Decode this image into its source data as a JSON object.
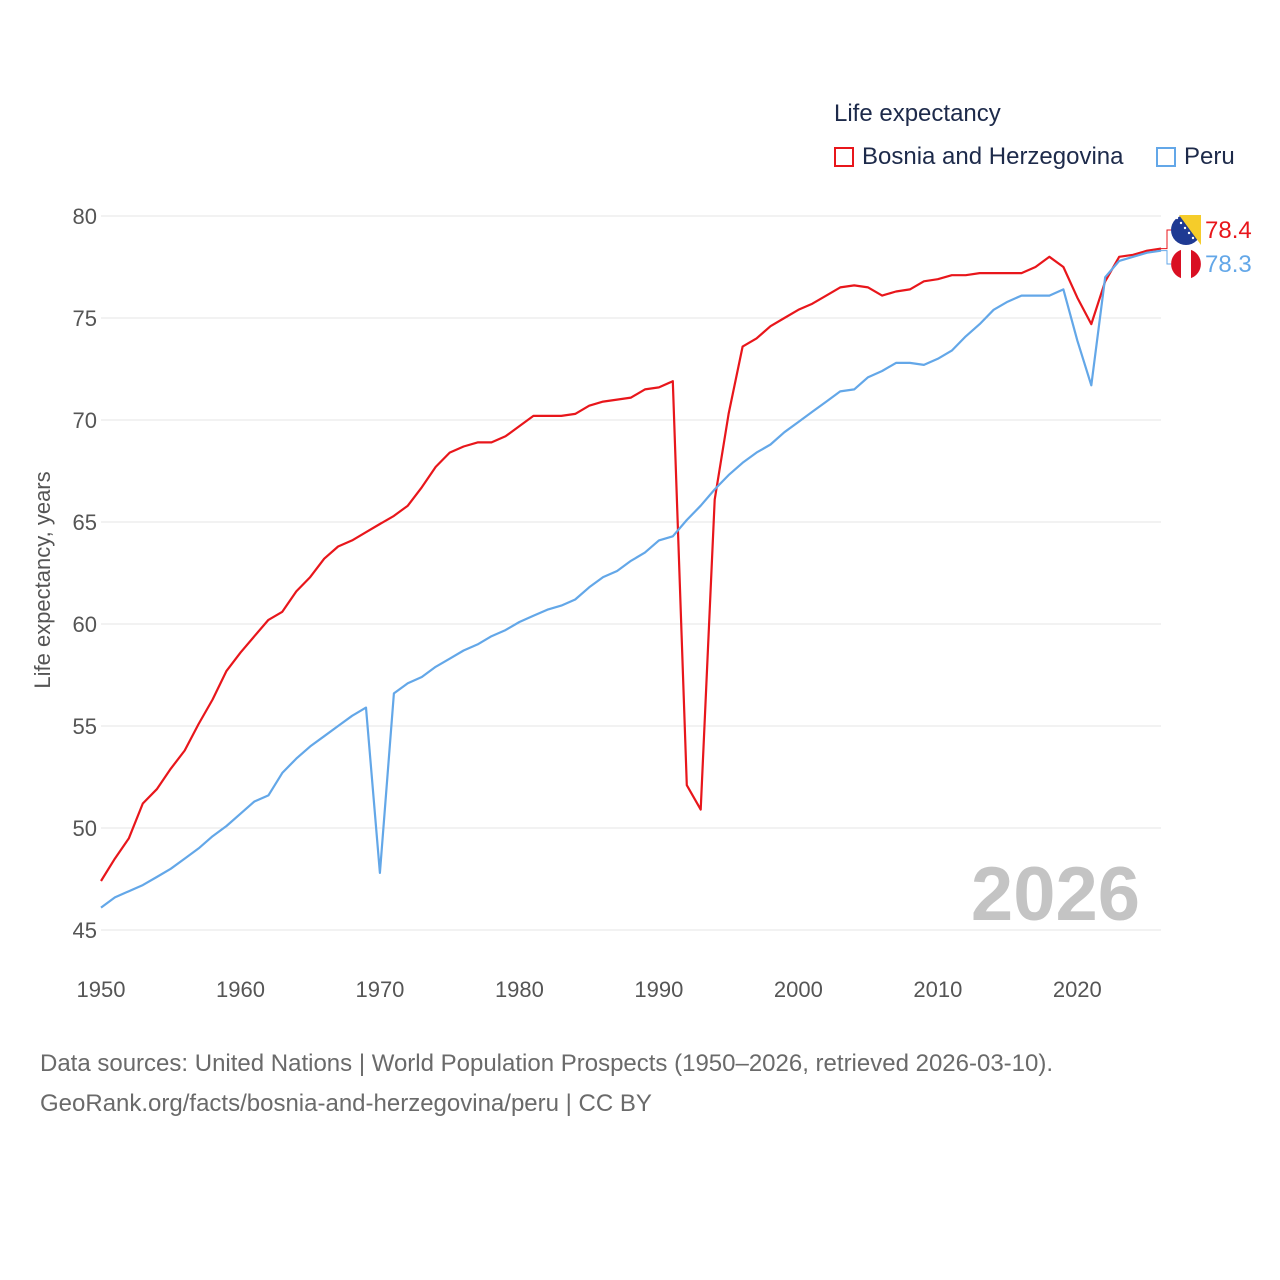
{
  "chart_data": {
    "type": "line",
    "legend_title": "Life expectancy",
    "ylabel": "Life expectancy, years",
    "xlabel": "",
    "xlim": [
      1950,
      2026
    ],
    "ylim": [
      45,
      80
    ],
    "x_ticks": [
      1950,
      1960,
      1970,
      1980,
      1990,
      2000,
      2010,
      2020
    ],
    "y_ticks": [
      45,
      50,
      55,
      60,
      65,
      70,
      75,
      80
    ],
    "year_label": "2026",
    "legend_position": "top-right",
    "series": [
      {
        "name": "Bosnia and Herzegovina",
        "color": "#e8161b",
        "end_label": "78.4",
        "flag_icon": "bosnia-flag-icon",
        "x": [
          1950,
          1951,
          1952,
          1953,
          1954,
          1955,
          1956,
          1957,
          1958,
          1959,
          1960,
          1961,
          1962,
          1963,
          1964,
          1965,
          1966,
          1967,
          1968,
          1969,
          1970,
          1971,
          1972,
          1973,
          1974,
          1975,
          1976,
          1977,
          1978,
          1979,
          1980,
          1981,
          1982,
          1983,
          1984,
          1985,
          1986,
          1987,
          1988,
          1989,
          1990,
          1991,
          1992,
          1993,
          1994,
          1995,
          1996,
          1997,
          1998,
          1999,
          2000,
          2001,
          2002,
          2003,
          2004,
          2005,
          2006,
          2007,
          2008,
          2009,
          2010,
          2011,
          2012,
          2013,
          2014,
          2015,
          2016,
          2017,
          2018,
          2019,
          2020,
          2021,
          2022,
          2023,
          2024,
          2025,
          2026
        ],
        "values": [
          47.4,
          48.5,
          49.5,
          51.2,
          51.9,
          52.9,
          53.8,
          55.1,
          56.3,
          57.7,
          58.6,
          59.4,
          60.2,
          60.6,
          61.6,
          62.3,
          63.2,
          63.8,
          64.1,
          64.5,
          64.9,
          65.3,
          65.8,
          66.7,
          67.7,
          68.4,
          68.7,
          68.9,
          68.9,
          69.2,
          69.7,
          70.2,
          70.2,
          70.2,
          70.3,
          70.7,
          70.9,
          71.0,
          71.1,
          71.5,
          71.6,
          71.9,
          52.1,
          50.9,
          66.1,
          70.3,
          73.6,
          74.0,
          74.6,
          75.0,
          75.4,
          75.7,
          76.1,
          76.5,
          76.6,
          76.5,
          76.1,
          76.3,
          76.4,
          76.8,
          76.9,
          77.1,
          77.1,
          77.2,
          77.2,
          77.2,
          77.2,
          77.5,
          78.0,
          77.5,
          76.0,
          74.7,
          76.8,
          78.0,
          78.1,
          78.3,
          78.4
        ]
      },
      {
        "name": "Peru",
        "color": "#63a7e8",
        "end_label": "78.3",
        "flag_icon": "peru-flag-icon",
        "x": [
          1950,
          1951,
          1952,
          1953,
          1954,
          1955,
          1956,
          1957,
          1958,
          1959,
          1960,
          1961,
          1962,
          1963,
          1964,
          1965,
          1966,
          1967,
          1968,
          1969,
          1970,
          1971,
          1972,
          1973,
          1974,
          1975,
          1976,
          1977,
          1978,
          1979,
          1980,
          1981,
          1982,
          1983,
          1984,
          1985,
          1986,
          1987,
          1988,
          1989,
          1990,
          1991,
          1992,
          1993,
          1994,
          1995,
          1996,
          1997,
          1998,
          1999,
          2000,
          2001,
          2002,
          2003,
          2004,
          2005,
          2006,
          2007,
          2008,
          2009,
          2010,
          2011,
          2012,
          2013,
          2014,
          2015,
          2016,
          2017,
          2018,
          2019,
          2020,
          2021,
          2022,
          2023,
          2024,
          2025,
          2026
        ],
        "values": [
          46.1,
          46.6,
          46.9,
          47.2,
          47.6,
          48.0,
          48.5,
          49.0,
          49.6,
          50.1,
          50.7,
          51.3,
          51.6,
          52.7,
          53.4,
          54.0,
          54.5,
          55.0,
          55.5,
          55.9,
          47.8,
          56.6,
          57.1,
          57.4,
          57.9,
          58.3,
          58.7,
          59.0,
          59.4,
          59.7,
          60.1,
          60.4,
          60.7,
          60.9,
          61.2,
          61.8,
          62.3,
          62.6,
          63.1,
          63.5,
          64.1,
          64.3,
          65.1,
          65.8,
          66.6,
          67.3,
          67.9,
          68.4,
          68.8,
          69.4,
          69.9,
          70.4,
          70.9,
          71.4,
          71.5,
          72.1,
          72.4,
          72.8,
          72.8,
          72.7,
          73.0,
          73.4,
          74.1,
          74.7,
          75.4,
          75.8,
          76.1,
          76.1,
          76.1,
          76.4,
          73.9,
          71.7,
          77.0,
          77.8,
          78.0,
          78.2,
          78.3
        ]
      }
    ]
  },
  "footer": {
    "line1": "Data sources: United Nations | World Population Prospects (1950–2026, retrieved 2026-03-10).",
    "line2": "GeoRank.org/facts/bosnia-and-herzegovina/peru | CC BY"
  }
}
